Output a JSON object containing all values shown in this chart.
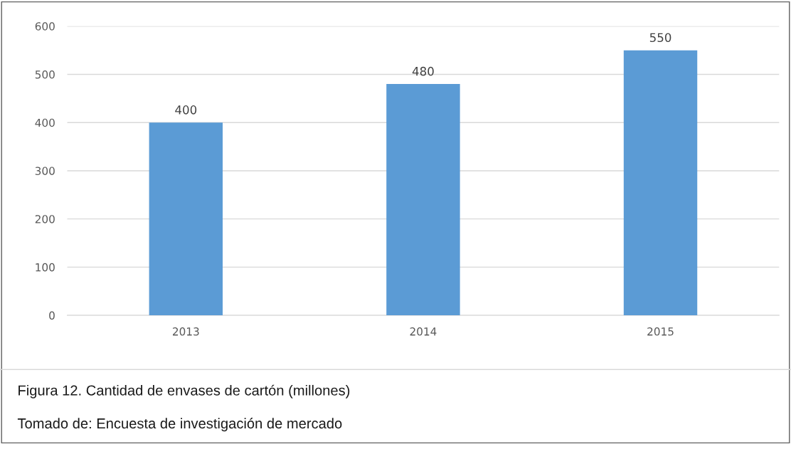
{
  "chart_data": {
    "type": "bar",
    "categories": [
      "2013",
      "2014",
      "2015"
    ],
    "values": [
      400,
      480,
      550
    ],
    "color": "#5b9bd5",
    "ylim": [
      0,
      600
    ],
    "yticks": [
      0,
      100,
      200,
      300,
      400,
      500,
      600
    ],
    "grid": "y",
    "data_labels": true,
    "annotations": [
      "Figura 12. Cantidad de envases de cartón (millones)",
      "Tomado de: Encuesta de investigación de mercado"
    ]
  }
}
